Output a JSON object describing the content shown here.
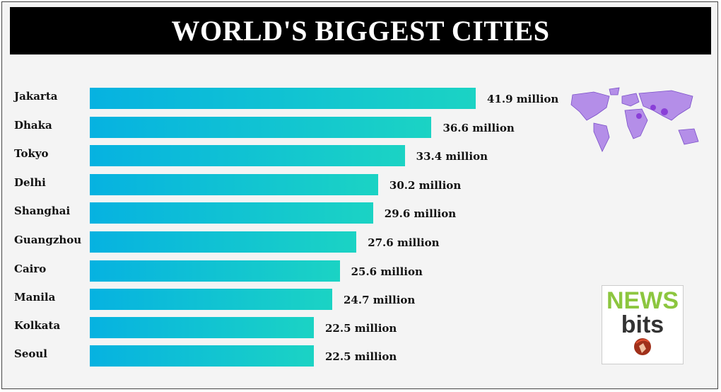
{
  "chart_data": {
    "type": "bar",
    "orientation": "horizontal",
    "title": "WORLD'S BIGGEST CITIES",
    "categories": [
      "Jakarta",
      "Dhaka",
      "Tokyo",
      "Delhi",
      "Shanghai",
      "Guangzhou",
      "Cairo",
      "Manila",
      "Kolkata",
      "Seoul"
    ],
    "values": [
      41.9,
      36.6,
      33.4,
      30.2,
      29.6,
      27.6,
      25.6,
      24.7,
      22.5,
      22.5
    ],
    "data_labels": [
      "41.9 million",
      "36.6 million",
      "33.4 million",
      "30.2 million",
      "29.6 million",
      "27.6 million",
      "25.6 million",
      "24.7 million",
      "22.5 million",
      "22.5 million"
    ],
    "unit": "million",
    "grid": false,
    "colors": {
      "bar_start": "#06b2e1",
      "bar_end": "#1bd3c4",
      "title_bg": "#000000"
    }
  },
  "logo": {
    "line1": "NEWS",
    "line2": "bits"
  },
  "decorations": [
    "world-map-image",
    "news-bits-logo"
  ]
}
